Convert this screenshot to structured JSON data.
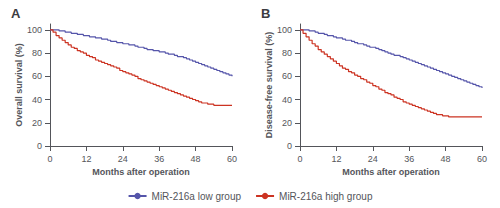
{
  "chart_data": [
    {
      "type": "step",
      "title": "A",
      "xlabel": "Months after operation",
      "ylabel": "Overall survival (%)",
      "xlim": [
        0,
        60
      ],
      "ylim": [
        0,
        105
      ],
      "xticks": [
        0,
        12,
        24,
        36,
        48,
        60
      ],
      "yticks": [
        0,
        20,
        40,
        60,
        80,
        100
      ],
      "grid": false,
      "legend": "bottom",
      "x": [
        0,
        1,
        2,
        3,
        4,
        5,
        6,
        7,
        8,
        9,
        10,
        11,
        12,
        13,
        14,
        15,
        16,
        17,
        18,
        19,
        20,
        21,
        22,
        23,
        24,
        25,
        26,
        27,
        28,
        29,
        30,
        31,
        32,
        33,
        34,
        35,
        36,
        37,
        38,
        39,
        40,
        41,
        42,
        43,
        44,
        45,
        46,
        47,
        48,
        49,
        50,
        51,
        52,
        53,
        54,
        55,
        56,
        57,
        58,
        59,
        60
      ],
      "series": [
        {
          "name": "MiR-216a low group",
          "color": "#5555aa",
          "values": [
            100,
            100,
            100,
            99,
            99,
            98,
            98,
            97,
            97,
            96,
            96,
            95,
            95,
            94,
            94,
            93,
            93,
            92,
            92,
            91,
            90,
            90,
            89,
            89,
            88,
            88,
            87,
            87,
            86,
            85,
            85,
            84,
            83,
            83,
            82,
            82,
            81,
            81,
            80,
            79,
            79,
            78,
            77,
            77,
            76,
            75,
            74,
            73,
            72,
            71,
            70,
            69,
            68,
            67,
            66,
            65,
            64,
            63,
            62,
            61,
            60
          ]
        },
        {
          "name": "MiR-216a high group",
          "color": "#cc3322",
          "values": [
            100,
            98,
            95,
            93,
            91,
            89,
            87,
            85,
            84,
            82,
            81,
            80,
            78,
            77,
            76,
            74,
            73,
            72,
            71,
            70,
            69,
            68,
            67,
            65,
            64,
            63,
            62,
            61,
            60,
            58,
            57,
            56,
            55,
            54,
            53,
            52,
            51,
            50,
            49,
            48,
            47,
            46,
            45,
            44,
            43,
            42,
            41,
            40,
            39,
            38,
            37,
            37,
            36,
            36,
            35,
            35,
            35,
            35,
            35,
            35,
            35
          ]
        }
      ]
    },
    {
      "type": "step",
      "title": "B",
      "xlabel": "Months after operation",
      "ylabel": "Disease-free survival (%)",
      "xlim": [
        0,
        60
      ],
      "ylim": [
        0,
        105
      ],
      "xticks": [
        0,
        12,
        24,
        36,
        48,
        60
      ],
      "yticks": [
        0,
        20,
        40,
        60,
        80,
        100
      ],
      "grid": false,
      "legend": "bottom",
      "x": [
        0,
        1,
        2,
        3,
        4,
        5,
        6,
        7,
        8,
        9,
        10,
        11,
        12,
        13,
        14,
        15,
        16,
        17,
        18,
        19,
        20,
        21,
        22,
        23,
        24,
        25,
        26,
        27,
        28,
        29,
        30,
        31,
        32,
        33,
        34,
        35,
        36,
        37,
        38,
        39,
        40,
        41,
        42,
        43,
        44,
        45,
        46,
        47,
        48,
        49,
        50,
        51,
        52,
        53,
        54,
        55,
        56,
        57,
        58,
        59,
        60
      ],
      "series": [
        {
          "name": "MiR-216a low group",
          "color": "#5555aa",
          "values": [
            100,
            100,
            100,
            99,
            99,
            98,
            97,
            97,
            96,
            95,
            95,
            94,
            93,
            93,
            92,
            91,
            91,
            90,
            89,
            88,
            88,
            87,
            86,
            85,
            85,
            84,
            83,
            82,
            81,
            80,
            79,
            78,
            78,
            77,
            76,
            75,
            74,
            73,
            72,
            71,
            70,
            69,
            68,
            67,
            66,
            65,
            64,
            63,
            62,
            61,
            60,
            59,
            58,
            57,
            56,
            55,
            54,
            53,
            52,
            51,
            50
          ]
        },
        {
          "name": "MiR-216a high group",
          "color": "#cc3322",
          "values": [
            100,
            97,
            94,
            91,
            88,
            86,
            83,
            81,
            79,
            77,
            75,
            73,
            71,
            69,
            67,
            66,
            64,
            63,
            61,
            60,
            58,
            57,
            55,
            54,
            52,
            51,
            49,
            48,
            46,
            45,
            44,
            42,
            41,
            40,
            38,
            37,
            36,
            35,
            34,
            33,
            32,
            31,
            30,
            29,
            28,
            27,
            27,
            26,
            26,
            25,
            25,
            25,
            25,
            25,
            25,
            25,
            25,
            25,
            25,
            25,
            25
          ]
        }
      ]
    }
  ]
}
